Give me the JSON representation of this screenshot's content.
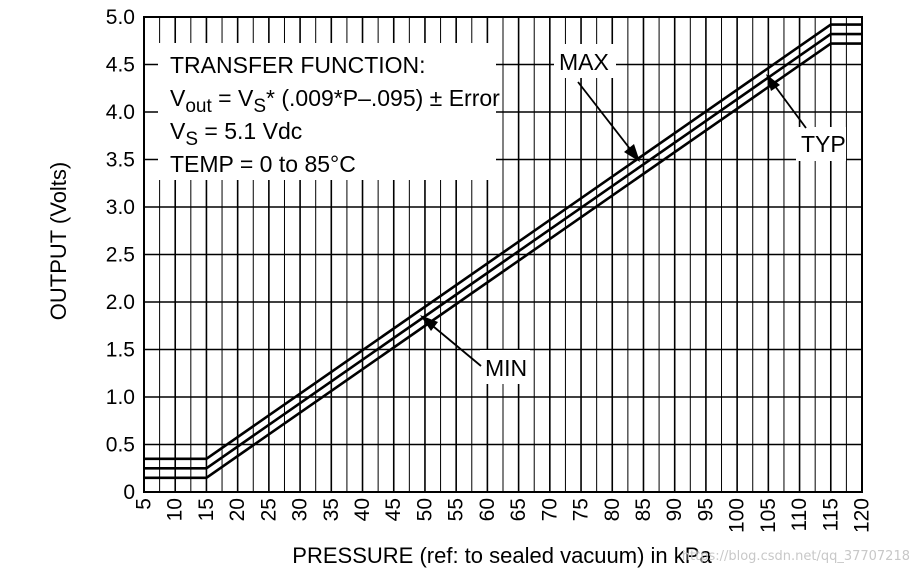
{
  "chart_data": {
    "type": "line",
    "xlabel": "PRESSURE (ref: to sealed vacuum) in kPa",
    "ylabel": "OUTPUT (Volts)",
    "xlim": [
      5,
      120
    ],
    "ylim": [
      0,
      5.0
    ],
    "x_ticks": [
      "5",
      "10",
      "15",
      "20",
      "25",
      "30",
      "35",
      "40",
      "45",
      "50",
      "55",
      "60",
      "65",
      "70",
      "75",
      "80",
      "85",
      "90",
      "95",
      "100",
      "105",
      "110",
      "115",
      "120"
    ],
    "y_ticks": [
      "0",
      "0.5",
      "1.0",
      "1.5",
      "2.0",
      "2.5",
      "3.0",
      "3.5",
      "4.0",
      "4.5",
      "5.0"
    ],
    "x_minor_step": 2.5,
    "grid": true,
    "series": [
      {
        "name": "MAX",
        "x": [
          5,
          15,
          115,
          120
        ],
        "y": [
          0.35,
          0.35,
          4.92,
          4.92
        ]
      },
      {
        "name": "TYP",
        "x": [
          5,
          15,
          115,
          120
        ],
        "y": [
          0.25,
          0.25,
          4.82,
          4.82
        ]
      },
      {
        "name": "MIN",
        "x": [
          5,
          15,
          115,
          120
        ],
        "y": [
          0.15,
          0.15,
          4.72,
          4.72
        ]
      }
    ],
    "info_box": {
      "line1": "TRANSFER FUNCTION:",
      "line2_a": "V",
      "line2_sub1": "out",
      "line2_b": " = V",
      "line2_sub2": "S",
      "line2_c": "* (.009*P–.095) ± Error",
      "line3_a": "V",
      "line3_sub": "S",
      "line3_b": " = 5.1 Vdc",
      "line4": "TEMP = 0 to 85°C"
    },
    "annotations": [
      {
        "text": "MAX",
        "target": "MAX",
        "at_x": 85
      },
      {
        "text": "TYP",
        "target": "TYP",
        "at_x": 108
      },
      {
        "text": "MIN",
        "target": "MIN",
        "at_x": 50
      }
    ]
  },
  "watermark": "https://blog.csdn.net/qq_37707218"
}
